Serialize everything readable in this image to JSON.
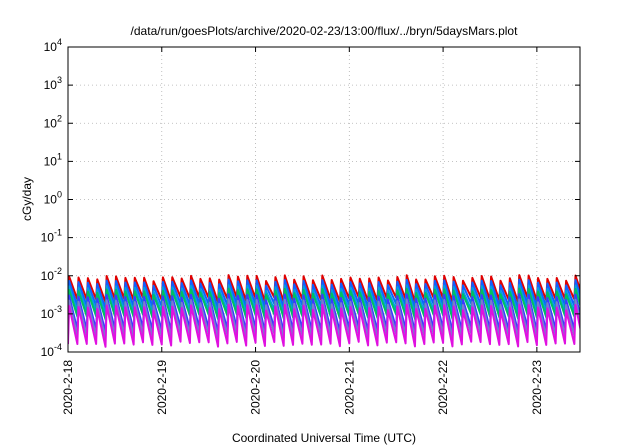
{
  "chart_data": {
    "type": "line",
    "title": "/data/run/goesPlots/archive/2020-02-23/13:00/flux/../bryn/5daysMars.plot",
    "xlabel": "Coordinated Universal Time (UTC)",
    "ylabel": "cGy/day",
    "yscale": "log",
    "ylim": [
      0.0001,
      10000
    ],
    "xlim": [
      0,
      5.46
    ],
    "grid": true,
    "ytick_exponents": [
      -4,
      -3,
      -2,
      -1,
      0,
      1,
      2,
      3,
      4
    ],
    "xtick_labels": [
      "2020-2-18",
      "2020-2-19",
      "2020-2-20",
      "2020-2-21",
      "2020-2-22",
      "2020-2-23"
    ],
    "xtick_values": [
      0,
      1,
      2,
      3,
      4,
      5
    ],
    "sawtooth_period_days": 0.1,
    "series": [
      {
        "color": "#e00000",
        "peak": 0.0095,
        "base": 0.0025
      },
      {
        "color": "#1060ff",
        "peak": 0.0072,
        "base": 0.0017
      },
      {
        "color": "#00a0e0",
        "peak": 0.0052,
        "base": 0.0012
      },
      {
        "color": "#00c060",
        "peak": 0.0042,
        "base": 0.0009
      },
      {
        "color": "#3a3aff",
        "peak": 0.003,
        "base": 0.0004
      },
      {
        "color": "#7a7ad0",
        "peak": 0.0022,
        "base": 0.00028
      },
      {
        "color": "#e010e0",
        "peak": 0.0016,
        "base": 0.00017
      }
    ]
  }
}
